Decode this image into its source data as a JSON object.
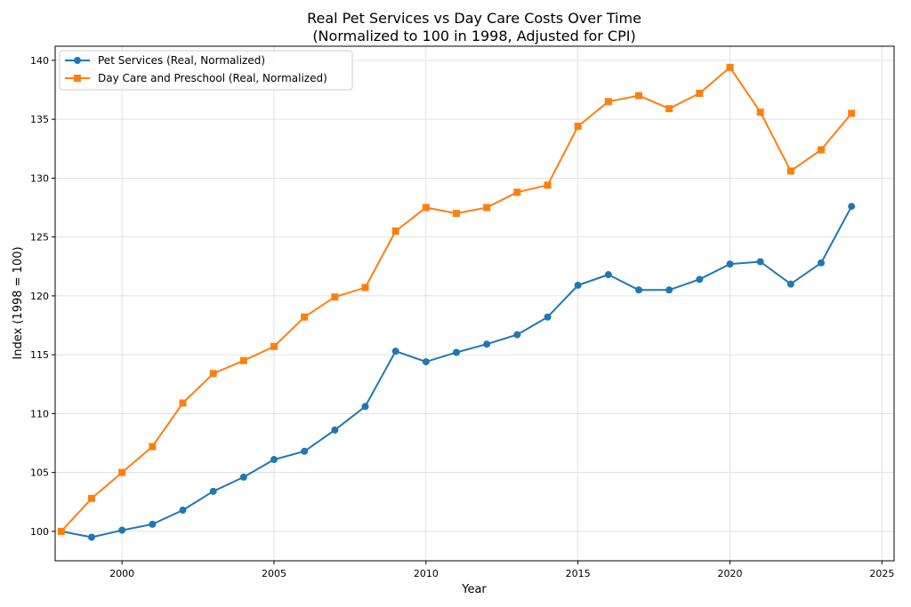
{
  "chart_data": {
    "type": "line",
    "title": "Real Pet Services vs Day Care Costs Over Time",
    "subtitle": "(Normalized to 100 in 1998, Adjusted for CPI)",
    "xlabel": "Year",
    "ylabel": "Index (1998 = 100)",
    "xlim": [
      1997.8,
      2025.4
    ],
    "ylim": [
      97.5,
      141.2
    ],
    "xticks": [
      2000,
      2005,
      2010,
      2015,
      2020,
      2025
    ],
    "yticks": [
      100,
      105,
      110,
      115,
      120,
      125,
      130,
      135,
      140
    ],
    "grid": true,
    "legend_position": "top-left",
    "x": [
      1998,
      1999,
      2000,
      2001,
      2002,
      2003,
      2004,
      2005,
      2006,
      2007,
      2008,
      2009,
      2010,
      2011,
      2012,
      2013,
      2014,
      2015,
      2016,
      2017,
      2018,
      2019,
      2020,
      2021,
      2022,
      2023,
      2024
    ],
    "series": [
      {
        "name": "Pet Services (Real, Normalized)",
        "color": "#1f77b4",
        "marker": "circle",
        "values": [
          100.0,
          99.5,
          100.1,
          100.6,
          101.8,
          103.4,
          104.6,
          106.1,
          106.8,
          108.6,
          110.6,
          115.3,
          114.4,
          115.2,
          115.9,
          116.7,
          118.2,
          120.9,
          121.8,
          120.5,
          120.5,
          121.4,
          122.7,
          122.9,
          121.0,
          122.8,
          127.6
        ]
      },
      {
        "name": "Day Care and Preschool (Real, Normalized)",
        "color": "#ff7f0e",
        "marker": "square",
        "values": [
          100.0,
          102.8,
          105.0,
          107.2,
          110.9,
          113.4,
          114.5,
          115.7,
          118.2,
          119.9,
          120.7,
          125.5,
          127.5,
          127.0,
          127.5,
          128.8,
          129.4,
          134.4,
          136.5,
          137.0,
          135.9,
          137.2,
          139.4,
          135.6,
          130.6,
          132.4,
          135.5
        ]
      }
    ]
  }
}
